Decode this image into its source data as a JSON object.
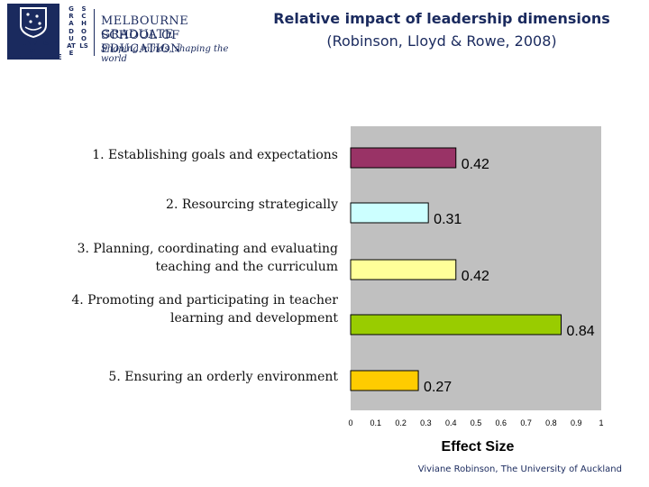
{
  "logo": {
    "crest_text_top": "THE UNIVERSITY OF",
    "crest_text_bottom": "MELBOURNE",
    "vertical_left": "GRADUATE",
    "vertical_right": "SCHOOLS",
    "line1": "MELBOURNE GRADUATE",
    "line2": "SCHOOL OF EDUCATION",
    "tagline": "Shaping minds, shaping the world"
  },
  "title": {
    "line1": "Relative impact of leadership dimensions",
    "line2": "(Robinson, Lloyd & Rowe, 2008)"
  },
  "chart_data": {
    "type": "bar",
    "orientation": "horizontal",
    "categories": [
      [
        "1.   Establishing goals and expectations"
      ],
      [
        "2.   Resourcing strategically"
      ],
      [
        "3.   Planning, coordinating and evaluating",
        "teaching and the curriculum"
      ],
      [
        "4.   Promoting and participating in teacher",
        "learning and development"
      ],
      [
        "5.   Ensuring an orderly environment"
      ]
    ],
    "values": [
      0.42,
      0.31,
      0.42,
      0.84,
      0.27
    ],
    "value_labels": [
      "0.42",
      "0.31",
      "0.42",
      "0.84",
      "0.27"
    ],
    "bar_colors": [
      "#993366",
      "#ccffff",
      "#ffff99",
      "#99cc00",
      "#ffcc00"
    ],
    "plot_background": "#c0c0c0",
    "xlabel": "Effect Size",
    "xlim": [
      0,
      1
    ],
    "xticks": [
      "0",
      "0.1",
      "0.2",
      "0.3",
      "0.4",
      "0.5",
      "0.6",
      "0.7",
      "0.8",
      "0.9",
      "1"
    ],
    "grid": false
  },
  "credit": "Viviane Robinson, The University of Auckland"
}
